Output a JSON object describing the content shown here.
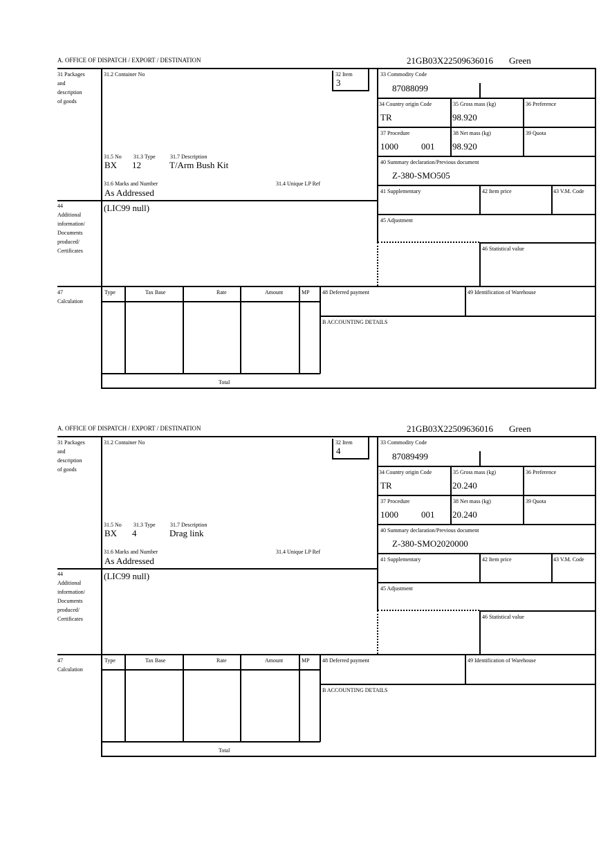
{
  "labels": {
    "office": "A.  OFFICE OF DISPATCH / EXPORT / DESTINATION",
    "packages": [
      "31 Packages",
      "and",
      "description",
      "of goods"
    ],
    "container_no": "31.2 Container No",
    "item": "32 Item",
    "no": "31.5 No",
    "type": "31.3 Type",
    "description": "31.7 Description",
    "marks": "31.6 Marks and Number",
    "unique_lp_ref": "31.4 Unique LP Ref",
    "commodity_code": "33 Commodity Code",
    "country_origin": "34 Country origin Code",
    "gross_mass": "35 Gross mass (kg)",
    "preference": "36 Preference",
    "procedure": "37 Procedure",
    "net_mass": "38 Net mass (kg)",
    "quota": "39 Quota",
    "summary_decl": "40 Summary declaration/Previous document",
    "supplementary": "41 Supplementary",
    "item_price": "42 Item price",
    "vm_code": "43 V.M. Code",
    "additional": [
      "44",
      "Additional",
      "information/",
      "Documents",
      "produced/",
      "Certificates"
    ],
    "adjustment": "45 Adjustment",
    "statistical_value": "46 Statistical value",
    "calculation": [
      "47",
      "Calculation"
    ],
    "calc_cols": [
      "Type",
      "Tax Base",
      "Rate",
      "Amount",
      "MP"
    ],
    "total": "Total",
    "deferred_payment": "48 Deferred payment",
    "warehouse": "49 Identification of Warehouse",
    "accounting": "B ACCOUNTING DETAILS"
  },
  "forms": [
    {
      "reference": "21GB03X22509636016",
      "route": "Green",
      "item": "3",
      "no": "BX",
      "type": "12",
      "description": "T/Arm Bush Kit",
      "marks": "As Addressed",
      "commodity_code": "87088099",
      "country_origin": "TR",
      "gross_mass": "98.920",
      "procedure": "1000",
      "procedure_additional": "001",
      "net_mass": "98.920",
      "summary_decl": "Z-380-SMO505",
      "additional_info": "(LIC99 null)"
    },
    {
      "reference": "21GB03X22509636016",
      "route": "Green",
      "item": "4",
      "no": "BX",
      "type": "4",
      "description": "Drag link",
      "marks": "As Addressed",
      "commodity_code": "87089499",
      "country_origin": "TR",
      "gross_mass": "20.240",
      "procedure": "1000",
      "procedure_additional": "001",
      "net_mass": "20.240",
      "summary_decl": "Z-380-SMO2020000",
      "additional_info": "(LIC99 null)"
    }
  ]
}
